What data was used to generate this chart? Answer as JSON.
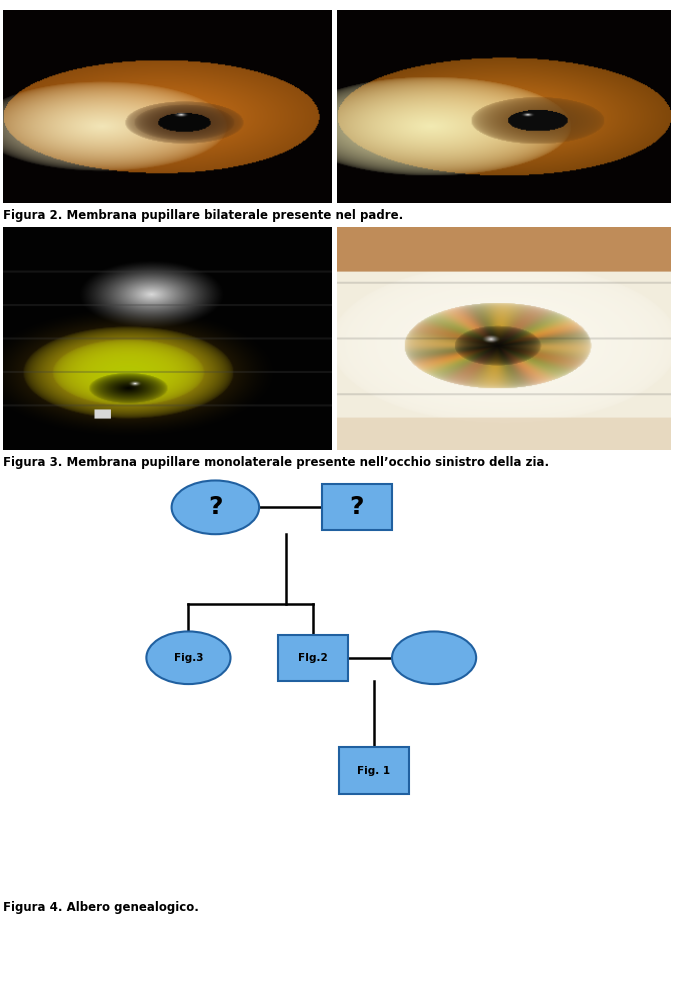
{
  "fig_width": 6.73,
  "fig_height": 9.88,
  "bg_color": "#ffffff",
  "caption2": "Figura 2. Membrana pupillare bilaterale presente nel padre.",
  "caption3": "Figura 3. Membrana pupillare monolaterale presente nell’occhio sinistro della zia.",
  "caption4": "Figura 4. Albero genealogico.",
  "node_color": "#6aaee8",
  "node_edge_color": "#2060a0",
  "line_color": "#000000",
  "text_color": "#000000"
}
